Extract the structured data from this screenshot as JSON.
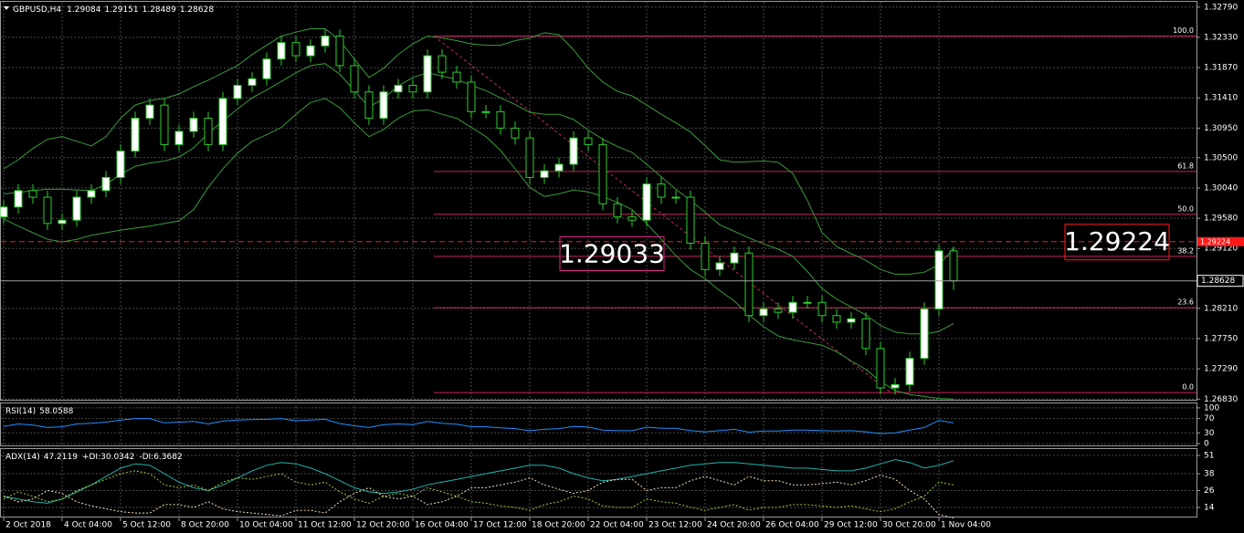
{
  "chart_data": [
    {
      "type": "candlestick",
      "symbol": "GBPUSD,H4",
      "categories": [
        "2 Oct 2018",
        null,
        null,
        null,
        "4 Oct 04:00",
        null,
        null,
        null,
        "5 Oct 12:00",
        null,
        null,
        null,
        "8 Oct 20:00",
        null,
        null,
        null,
        "10 Oct 04:00",
        null,
        null,
        null,
        "11 Oct 12:00",
        null,
        null,
        null,
        "12 Oct 20:00",
        null,
        null,
        null,
        "16 Oct 04:00",
        null,
        null,
        null,
        "17 Oct 12:00",
        null,
        null,
        null,
        "18 Oct 20:00",
        null,
        null,
        null,
        "22 Oct 04:00",
        null,
        null,
        null,
        "23 Oct 12:00",
        null,
        null,
        null,
        "24 Oct 20:00",
        null,
        null,
        null,
        "26 Oct 04:00",
        null,
        null,
        null,
        "29 Oct 12:00",
        null,
        null,
        null,
        "30 Oct 20:00",
        null,
        null,
        null,
        "1 Nov 04:00",
        null
      ],
      "open": [
        1.296,
        1.2975,
        1.3,
        1.299,
        1.295,
        1.2955,
        1.299,
        1.3,
        1.302,
        1.306,
        1.311,
        1.313,
        1.307,
        1.309,
        1.311,
        1.307,
        1.314,
        1.316,
        1.317,
        1.32,
        1.3225,
        1.3205,
        1.322,
        1.3235,
        1.319,
        1.315,
        1.311,
        1.315,
        1.316,
        1.315,
        1.3205,
        1.318,
        1.3165,
        1.312,
        1.312,
        1.3095,
        1.308,
        1.302,
        1.303,
        1.304,
        1.308,
        1.307,
        1.298,
        1.296,
        1.2955,
        1.301,
        1.299,
        1.299,
        1.292,
        1.288,
        1.289,
        1.2905,
        1.281,
        1.282,
        1.2815,
        1.283,
        1.283,
        1.281,
        1.28,
        1.2805,
        1.276,
        1.27,
        1.2705,
        1.2745,
        1.282,
        1.29084
      ],
      "high": [
        1.2985,
        1.301,
        1.301,
        1.3,
        1.2965,
        1.3,
        1.301,
        1.303,
        1.307,
        1.312,
        1.314,
        1.314,
        1.31,
        1.312,
        1.312,
        1.315,
        1.317,
        1.318,
        1.321,
        1.3235,
        1.3235,
        1.323,
        1.3245,
        1.3245,
        1.32,
        1.316,
        1.316,
        1.317,
        1.317,
        1.3215,
        1.3215,
        1.319,
        1.3175,
        1.313,
        1.313,
        1.3105,
        1.309,
        1.304,
        1.305,
        1.309,
        1.309,
        1.308,
        1.299,
        1.297,
        1.302,
        1.302,
        1.3,
        1.3,
        1.293,
        1.29,
        1.2915,
        1.2915,
        1.283,
        1.283,
        1.284,
        1.284,
        1.284,
        1.282,
        1.2815,
        1.2815,
        1.277,
        1.2715,
        1.2755,
        1.283,
        1.2918,
        1.29151
      ],
      "low": [
        1.295,
        1.2965,
        1.298,
        1.294,
        1.294,
        1.2945,
        1.298,
        1.299,
        1.301,
        1.305,
        1.31,
        1.306,
        1.306,
        1.308,
        1.306,
        1.306,
        1.313,
        1.315,
        1.316,
        1.319,
        1.3195,
        1.3195,
        1.321,
        1.318,
        1.314,
        1.31,
        1.31,
        1.314,
        1.314,
        1.314,
        1.317,
        1.3155,
        1.311,
        1.311,
        1.3085,
        1.307,
        1.301,
        1.301,
        1.302,
        1.303,
        1.306,
        1.297,
        1.295,
        1.2945,
        1.2945,
        1.298,
        1.298,
        1.291,
        1.287,
        1.287,
        1.288,
        1.28,
        1.28,
        1.2805,
        1.2805,
        1.282,
        1.28,
        1.279,
        1.279,
        1.275,
        1.269,
        1.269,
        1.2695,
        1.2735,
        1.281,
        1.28489
      ],
      "close": [
        1.2975,
        1.3,
        1.299,
        1.295,
        1.2955,
        1.299,
        1.3,
        1.302,
        1.306,
        1.311,
        1.313,
        1.307,
        1.309,
        1.311,
        1.307,
        1.314,
        1.316,
        1.317,
        1.32,
        1.3225,
        1.3205,
        1.322,
        1.3235,
        1.319,
        1.315,
        1.311,
        1.315,
        1.316,
        1.315,
        1.3205,
        1.318,
        1.3165,
        1.312,
        1.312,
        1.3095,
        1.308,
        1.302,
        1.303,
        1.304,
        1.308,
        1.307,
        1.298,
        1.296,
        1.2955,
        1.301,
        1.299,
        1.299,
        1.292,
        1.288,
        1.289,
        1.2905,
        1.281,
        1.282,
        1.2815,
        1.283,
        1.283,
        1.281,
        1.28,
        1.2805,
        1.276,
        1.27,
        1.2705,
        1.2745,
        1.282,
        1.29084,
        1.28628
      ],
      "up_color": "#ffffff",
      "down_color": "#000000",
      "wick_color": "#2ecc2e",
      "bands": [
        {
          "color": "#3a9a3a",
          "values": [
            1.3033,
            1.3047,
            1.3064,
            1.3078,
            1.3082,
            1.3075,
            1.3068,
            1.3082,
            1.311,
            1.313,
            1.3137,
            1.314,
            1.3147,
            1.3158,
            1.3168,
            1.3179,
            1.319,
            1.3207,
            1.3221,
            1.3235,
            1.3241,
            1.3246,
            1.3246,
            1.3228,
            1.32,
            1.3172,
            1.3186,
            1.3207,
            1.3223,
            1.3235,
            1.3232,
            1.3228,
            1.3223,
            1.3221,
            1.3221,
            1.3228,
            1.3232,
            1.324,
            1.3237,
            1.3214,
            1.3186,
            1.3165,
            1.3151,
            1.3144,
            1.313,
            1.3116,
            1.3103,
            1.3089,
            1.3068,
            1.3047,
            1.3043,
            1.3044,
            1.3045,
            1.3043,
            1.3026,
            1.2985,
            1.2936,
            1.2915,
            1.2904,
            1.2894,
            1.288,
            1.2873,
            1.2873,
            1.2876,
            1.2887,
            1.2912
          ]
        },
        {
          "color": "#3a9a3a",
          "values": [
            1.2995,
            1.2997,
            1.3,
            1.3002,
            1.3002,
            1.3001,
            1.3,
            1.3009,
            1.3025,
            1.3037,
            1.3042,
            1.3045,
            1.3051,
            1.3065,
            1.3087,
            1.3106,
            1.3124,
            1.3141,
            1.3153,
            1.3166,
            1.3179,
            1.319,
            1.3193,
            1.3177,
            1.3152,
            1.3127,
            1.314,
            1.3159,
            1.3172,
            1.3179,
            1.3174,
            1.3169,
            1.316,
            1.3152,
            1.3141,
            1.3131,
            1.3119,
            1.3116,
            1.3116,
            1.3108,
            1.3092,
            1.3078,
            1.3067,
            1.3058,
            1.304,
            1.3021,
            1.3002,
            1.2985,
            1.2967,
            1.2948,
            1.2938,
            1.2928,
            1.2919,
            1.2911,
            1.29,
            1.2877,
            1.2851,
            1.2835,
            1.2823,
            1.2811,
            1.2795,
            1.2785,
            1.2782,
            1.2782,
            1.2786,
            1.2798
          ]
        },
        {
          "color": "#3a9a3a",
          "values": [
            1.2957,
            1.2946,
            1.2936,
            1.2926,
            1.2922,
            1.2926,
            1.2932,
            1.2936,
            1.294,
            1.2943,
            1.2946,
            1.295,
            1.2954,
            1.2971,
            1.3005,
            1.3033,
            1.3057,
            1.3075,
            1.3085,
            1.3096,
            1.3116,
            1.3134,
            1.314,
            1.3126,
            1.3103,
            1.3082,
            1.3093,
            1.311,
            1.3121,
            1.3123,
            1.3116,
            1.311,
            1.3096,
            1.3082,
            1.3061,
            1.3033,
            1.3005,
            1.2991,
            1.2995,
            1.3001,
            1.2998,
            1.2991,
            1.2982,
            1.2971,
            1.295,
            1.2926,
            1.2901,
            1.288,
            1.2866,
            1.2848,
            1.2832,
            1.2811,
            1.2793,
            1.2779,
            1.2773,
            1.2769,
            1.2765,
            1.2755,
            1.2741,
            1.2728,
            1.271,
            1.2696,
            1.269,
            1.2687,
            1.2684,
            1.2683
          ]
        }
      ],
      "ylim": [
        1.2682,
        1.3287
      ],
      "yticks": [
        {
          "value": 1.3279,
          "label": "1.32790"
        },
        {
          "value": 1.3233,
          "label": "1.32330"
        },
        {
          "value": 1.3187,
          "label": "1.31870"
        },
        {
          "value": 1.3141,
          "label": "1.31410"
        },
        {
          "value": 1.3095,
          "label": "1.30950"
        },
        {
          "value": 1.305,
          "label": "1.30500"
        },
        {
          "value": 1.3004,
          "label": "1.30040"
        },
        {
          "value": 1.2958,
          "label": "1.29580"
        },
        {
          "value": 1.2912,
          "label": "1.29120"
        },
        {
          "value": 1.2821,
          "label": "1.28210"
        },
        {
          "value": 1.2775,
          "label": "1.27750"
        },
        {
          "value": 1.2729,
          "label": "1.27290"
        },
        {
          "value": 1.2683,
          "label": "1.26830"
        }
      ],
      "grid": true,
      "fib": {
        "color": "#c8245e",
        "levels": [
          {
            "value": 100,
            "label": "100.0"
          },
          61.8,
          {
            "value": 50,
            "label": "50.0"
          },
          38.2,
          23.6,
          {
            "value": 0,
            "label": "0.0"
          }
        ],
        "prices": [
          1.3235,
          1.3029,
          1.2964,
          1.29,
          1.2822,
          1.2693
        ]
      },
      "price_labels": [
        {
          "value": 1.29224,
          "color": "#ff1a1a"
        },
        {
          "value": 1.29033,
          "color": "#e0248a"
        }
      ]
    },
    {
      "type": "line",
      "ylim": [
        -5,
        115
      ],
      "yticks": [
        0,
        30,
        70,
        100
      ],
      "grid": true,
      "series": [
        {
          "name": "RSI(14)",
          "color": "#1e90ff",
          "style": "solid",
          "values": [
            48,
            55,
            52,
            45,
            47,
            55,
            57,
            60,
            66,
            70,
            70,
            58,
            60,
            62,
            55,
            63,
            66,
            67,
            68,
            70,
            64,
            66,
            68,
            56,
            50,
            45,
            53,
            55,
            53,
            62,
            57,
            54,
            47,
            47,
            44,
            42,
            36,
            40,
            42,
            48,
            46,
            38,
            36,
            36,
            46,
            43,
            43,
            36,
            33,
            36,
            40,
            32,
            35,
            35,
            38,
            38,
            36,
            35,
            36,
            33,
            28,
            30,
            38,
            45,
            65,
            58.0588
          ]
        }
      ]
    },
    {
      "type": "line",
      "ylim": [
        7.5,
        56.2
      ],
      "yticks": [
        14,
        26,
        38,
        51
      ],
      "grid": true,
      "series": [
        {
          "name": "ADX(14)",
          "color": "#20b2aa",
          "style": "solid",
          "values": [
            22,
            20,
            18,
            17,
            20,
            25,
            30,
            36,
            42,
            45,
            44,
            38,
            32,
            28,
            26,
            30,
            35,
            40,
            44,
            46,
            45,
            42,
            38,
            33,
            28,
            25,
            24,
            25,
            27,
            30,
            32,
            34,
            36,
            38,
            40,
            42,
            44,
            44,
            42,
            38,
            35,
            33,
            34,
            36,
            38,
            40,
            42,
            44,
            45,
            46,
            46,
            45,
            44,
            43,
            42,
            42,
            41,
            40,
            40,
            42,
            45,
            48,
            46,
            42,
            44,
            47.2119
          ]
        },
        {
          "name": "+DI:",
          "color": "#9acd32",
          "style": "dotted",
          "values": [
            20,
            25,
            22,
            18,
            20,
            26,
            30,
            34,
            38,
            40,
            38,
            30,
            28,
            30,
            26,
            32,
            35,
            34,
            36,
            38,
            32,
            30,
            32,
            25,
            20,
            17,
            22,
            24,
            22,
            28,
            25,
            22,
            18,
            17,
            15,
            14,
            12,
            16,
            18,
            22,
            20,
            15,
            14,
            14,
            20,
            18,
            17,
            14,
            12,
            14,
            16,
            12,
            14,
            14,
            16,
            16,
            15,
            14,
            15,
            13,
            11,
            13,
            18,
            22,
            32,
            30.0342
          ]
        },
        {
          "name": "-DI:",
          "color": "#f5deb3",
          "style": "dotted",
          "values": [
            22,
            18,
            20,
            26,
            24,
            18,
            15,
            13,
            11,
            10,
            10,
            16,
            16,
            14,
            18,
            13,
            11,
            10,
            9,
            8,
            12,
            12,
            10,
            18,
            24,
            28,
            22,
            20,
            22,
            16,
            18,
            22,
            28,
            28,
            30,
            32,
            35,
            30,
            27,
            24,
            26,
            32,
            34,
            34,
            26,
            28,
            28,
            33,
            36,
            33,
            30,
            36,
            33,
            33,
            30,
            30,
            31,
            32,
            30,
            33,
            37,
            34,
            26,
            20,
            9,
            6.3682
          ]
        }
      ]
    }
  ]
}
